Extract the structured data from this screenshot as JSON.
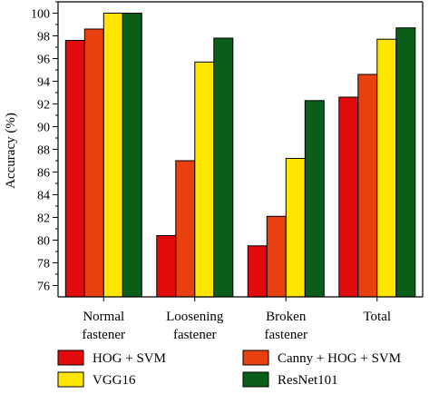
{
  "chart_data": {
    "type": "bar",
    "categories": [
      "Normal\nfastener",
      "Loosening\nfastener",
      "Broken\nfastener",
      "Total"
    ],
    "series": [
      {
        "name": "HOG + SVM",
        "color": "#e10b0b",
        "values": [
          97.6,
          80.4,
          79.5,
          92.6
        ]
      },
      {
        "name": "Canny + HOG + SVM",
        "color": "#e8400f",
        "values": [
          98.6,
          87.0,
          82.1,
          94.6
        ]
      },
      {
        "name": "VGG16",
        "color": "#ffe600",
        "values": [
          100.0,
          95.7,
          87.2,
          97.7
        ]
      },
      {
        "name": "ResNet101",
        "color": "#0b5e1a",
        "values": [
          100.0,
          97.8,
          92.3,
          98.7
        ]
      }
    ],
    "ylabel": "Accuracy (%)",
    "xlabel": "",
    "ylim": [
      75,
      101
    ],
    "yticks": [
      76,
      78,
      80,
      82,
      84,
      86,
      88,
      90,
      92,
      94,
      96,
      98,
      100
    ],
    "grid": false,
    "legend_position": "bottom"
  }
}
